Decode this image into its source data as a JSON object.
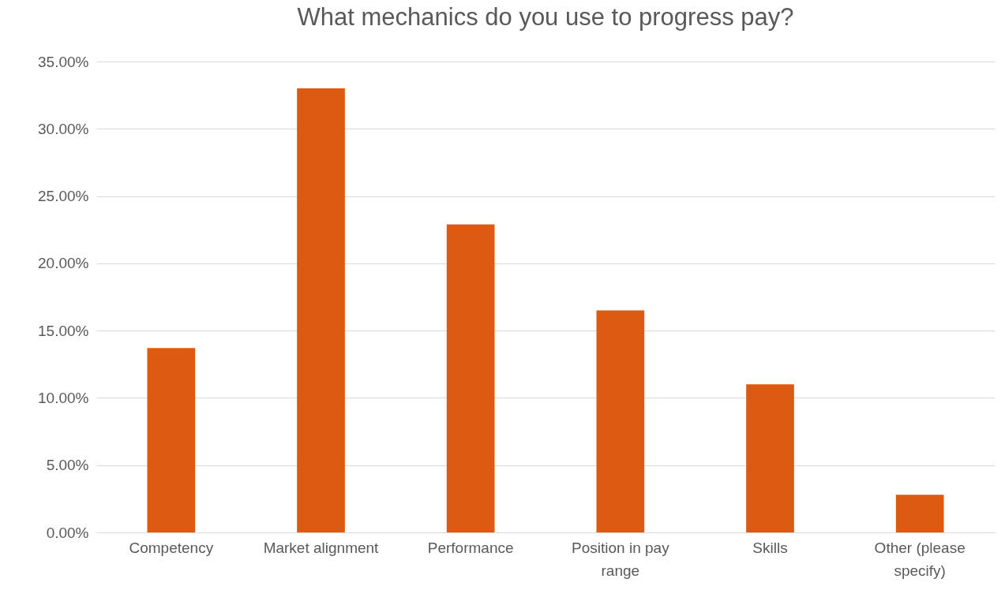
{
  "chart_data": {
    "type": "bar",
    "title": "What mechanics do you use to progress pay?",
    "categories": [
      "Competency",
      "Market alignment",
      "Performance",
      "Position in pay range",
      "Skills",
      "Other (please specify)"
    ],
    "values": [
      13.7,
      33.0,
      22.9,
      16.5,
      11.0,
      2.8
    ],
    "color": "#dd5a12",
    "ylim": [
      0,
      35
    ],
    "yticks": [
      {
        "value": 0,
        "label": "0.00%"
      },
      {
        "value": 5,
        "label": "5.00%"
      },
      {
        "value": 10,
        "label": "10.00%"
      },
      {
        "value": 15,
        "label": "15.00%"
      },
      {
        "value": 20,
        "label": "20.00%"
      },
      {
        "value": 25,
        "label": "25.00%"
      },
      {
        "value": 30,
        "label": "30.00%"
      },
      {
        "value": 35,
        "label": "35.00%"
      }
    ],
    "grid": "y"
  }
}
